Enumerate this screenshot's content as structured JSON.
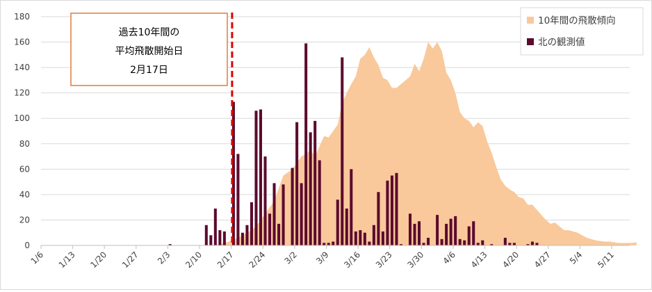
{
  "chart_data": {
    "type": "bar",
    "annotation": {
      "lines": [
        "過去10年間の",
        "平均飛散開始日",
        "2月17日"
      ],
      "marker_x": "2/17",
      "line_color": "#e00000",
      "box_border_color": "#e07b39"
    },
    "legend": {
      "position": "top-right",
      "items": [
        {
          "label": "10年間の飛散傾向",
          "color": "#f9c99b",
          "kind": "area"
        },
        {
          "label": "北の観測値",
          "color": "#5c0a2e",
          "kind": "bar"
        }
      ]
    },
    "y_axis": {
      "min": 0,
      "max": 180,
      "ticks": [
        0,
        20,
        40,
        60,
        80,
        100,
        120,
        140,
        160,
        180
      ]
    },
    "x_axis": {
      "start": "1/6",
      "tick_labels": [
        "1/6",
        "1/13",
        "1/20",
        "1/27",
        "2/3",
        "2/10",
        "2/17",
        "2/24",
        "3/2",
        "3/9",
        "3/16",
        "3/23",
        "3/30",
        "4/6",
        "4/13",
        "4/20",
        "4/27",
        "5/4",
        "5/11"
      ]
    },
    "grid": true,
    "series": [
      {
        "name": "10年間の飛散傾向",
        "type": "area",
        "color": "#f9c99b",
        "points": [
          [
            "2/12",
            0
          ],
          [
            "2/13",
            0.5
          ],
          [
            "2/14",
            1
          ],
          [
            "2/15",
            2
          ],
          [
            "2/16",
            3
          ],
          [
            "2/17",
            5
          ],
          [
            "2/18",
            6
          ],
          [
            "2/19",
            8
          ],
          [
            "2/20",
            10
          ],
          [
            "2/21",
            12
          ],
          [
            "2/22",
            15
          ],
          [
            "2/23",
            20
          ],
          [
            "2/24",
            25
          ],
          [
            "2/25",
            30
          ],
          [
            "2/26",
            35
          ],
          [
            "2/27",
            45
          ],
          [
            "2/28",
            55
          ],
          [
            "3/1",
            60
          ],
          [
            "3/2",
            65
          ],
          [
            "3/3",
            70
          ],
          [
            "3/4",
            72
          ],
          [
            "3/5",
            75
          ],
          [
            "3/6",
            70
          ],
          [
            "3/7",
            78
          ],
          [
            "3/8",
            86
          ],
          [
            "3/9",
            85
          ],
          [
            "3/10",
            90
          ],
          [
            "3/11",
            95
          ],
          [
            "3/12",
            112
          ],
          [
            "3/13",
            120
          ],
          [
            "3/14",
            127
          ],
          [
            "3/15",
            133
          ],
          [
            "3/16",
            147
          ],
          [
            "3/17",
            150
          ],
          [
            "3/18",
            156
          ],
          [
            "3/19",
            148
          ],
          [
            "3/20",
            142
          ],
          [
            "3/21",
            132
          ],
          [
            "3/22",
            130
          ],
          [
            "3/23",
            124
          ],
          [
            "3/24",
            124
          ],
          [
            "3/25",
            127
          ],
          [
            "3/26",
            130
          ],
          [
            "3/27",
            133
          ],
          [
            "3/28",
            143
          ],
          [
            "3/29",
            137
          ],
          [
            "3/30",
            147
          ],
          [
            "3/31",
            160
          ],
          [
            "4/1",
            155
          ],
          [
            "4/2",
            160
          ],
          [
            "4/3",
            153
          ],
          [
            "4/4",
            136
          ],
          [
            "4/5",
            130
          ],
          [
            "4/6",
            120
          ],
          [
            "4/7",
            105
          ],
          [
            "4/8",
            100
          ],
          [
            "4/9",
            98
          ],
          [
            "4/10",
            93
          ],
          [
            "4/11",
            97
          ],
          [
            "4/12",
            94
          ],
          [
            "4/13",
            82
          ],
          [
            "4/14",
            73
          ],
          [
            "4/15",
            62
          ],
          [
            "4/16",
            52
          ],
          [
            "4/17",
            47
          ],
          [
            "4/18",
            44
          ],
          [
            "4/19",
            42
          ],
          [
            "4/20",
            38
          ],
          [
            "4/21",
            37
          ],
          [
            "4/22",
            32
          ],
          [
            "4/23",
            32
          ],
          [
            "4/24",
            28
          ],
          [
            "4/25",
            24
          ],
          [
            "4/26",
            20
          ],
          [
            "4/27",
            17
          ],
          [
            "4/28",
            18
          ],
          [
            "4/29",
            15
          ],
          [
            "4/30",
            12
          ],
          [
            "5/1",
            12
          ],
          [
            "5/2",
            11
          ],
          [
            "5/3",
            10
          ],
          [
            "5/4",
            8
          ],
          [
            "5/5",
            6
          ],
          [
            "5/6",
            5
          ],
          [
            "5/7",
            4
          ],
          [
            "5/8",
            3.5
          ],
          [
            "5/9",
            3
          ],
          [
            "5/10",
            3
          ],
          [
            "5/11",
            2.5
          ],
          [
            "5/12",
            2
          ],
          [
            "5/13",
            2
          ],
          [
            "5/14",
            2
          ],
          [
            "5/15",
            2
          ],
          [
            "5/16",
            2.5
          ]
        ]
      },
      {
        "name": "北の観測値",
        "type": "bar",
        "color": "#5c0a2e",
        "points": [
          [
            "2/3",
            1
          ],
          [
            "2/11",
            16
          ],
          [
            "2/12",
            8
          ],
          [
            "2/13",
            29
          ],
          [
            "2/14",
            12
          ],
          [
            "2/15",
            11
          ],
          [
            "2/17",
            113
          ],
          [
            "2/18",
            72
          ],
          [
            "2/19",
            10
          ],
          [
            "2/20",
            16
          ],
          [
            "2/21",
            34
          ],
          [
            "2/22",
            106
          ],
          [
            "2/23",
            107
          ],
          [
            "2/24",
            70
          ],
          [
            "2/25",
            25
          ],
          [
            "2/26",
            49
          ],
          [
            "2/27",
            17
          ],
          [
            "2/28",
            48
          ],
          [
            "3/1",
            61
          ],
          [
            "3/2",
            97
          ],
          [
            "3/3",
            49
          ],
          [
            "3/4",
            159
          ],
          [
            "3/5",
            89
          ],
          [
            "3/6",
            98
          ],
          [
            "3/7",
            67
          ],
          [
            "3/8",
            2
          ],
          [
            "3/9",
            2
          ],
          [
            "3/10",
            3
          ],
          [
            "3/11",
            36
          ],
          [
            "3/12",
            148
          ],
          [
            "3/13",
            29
          ],
          [
            "3/14",
            60
          ],
          [
            "3/15",
            11
          ],
          [
            "3/16",
            12
          ],
          [
            "3/17",
            10
          ],
          [
            "3/18",
            3
          ],
          [
            "3/19",
            16
          ],
          [
            "3/20",
            42
          ],
          [
            "3/21",
            11
          ],
          [
            "3/22",
            51
          ],
          [
            "3/23",
            55
          ],
          [
            "3/24",
            57
          ],
          [
            "3/25",
            1
          ],
          [
            "3/27",
            25
          ],
          [
            "3/28",
            17
          ],
          [
            "3/29",
            19
          ],
          [
            "3/30",
            2
          ],
          [
            "3/31",
            6
          ],
          [
            "4/2",
            24
          ],
          [
            "4/3",
            5
          ],
          [
            "4/4",
            17
          ],
          [
            "4/5",
            21
          ],
          [
            "4/6",
            23
          ],
          [
            "4/7",
            5
          ],
          [
            "4/8",
            4
          ],
          [
            "4/9",
            15
          ],
          [
            "4/10",
            19
          ],
          [
            "4/11",
            2
          ],
          [
            "4/12",
            4
          ],
          [
            "4/14",
            1
          ],
          [
            "4/17",
            6
          ],
          [
            "4/18",
            2
          ],
          [
            "4/19",
            2
          ],
          [
            "4/22",
            1
          ],
          [
            "4/23",
            3
          ],
          [
            "4/24",
            2
          ]
        ]
      }
    ]
  }
}
